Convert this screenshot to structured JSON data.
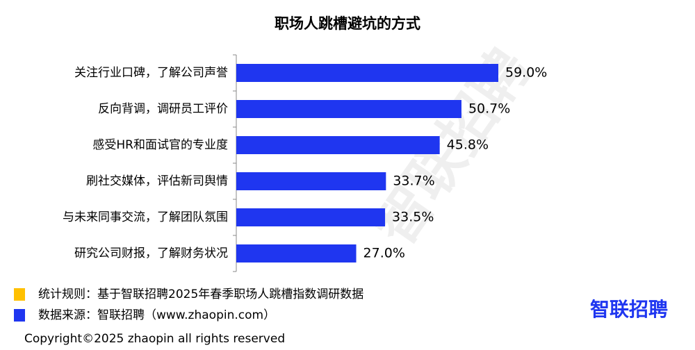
{
  "chart_data": {
    "type": "bar",
    "orientation": "horizontal",
    "title": "职场人跳槽避坑的方式",
    "categories": [
      "关注行业口碑，了解公司声誉",
      "反向背调，调研员工评价",
      "感受HR和面试官的专业度",
      "刷社交媒体，评估新司舆情",
      "与未来同事交流，了解团队氛围",
      "研究公司财报，了解财务状况"
    ],
    "values": [
      59.0,
      50.7,
      45.8,
      33.7,
      33.5,
      27.0
    ],
    "value_labels": [
      "59.0%",
      "50.7%",
      "45.8%",
      "33.7%",
      "33.5%",
      "27.0%"
    ],
    "color": "#1f36f0"
  },
  "notes": [
    {
      "text": "统计规则：基于智联招聘2025年春季职场人跳槽指数调研数据",
      "color": "#ffc000"
    },
    {
      "text": "数据来源：智联招聘（www.zhaopin.com）",
      "color": "#1f36f0"
    }
  ],
  "copyright": "Copyright©2025 zhaopin all rights reserved",
  "logo": "智联招聘",
  "watermark": "智联招聘"
}
